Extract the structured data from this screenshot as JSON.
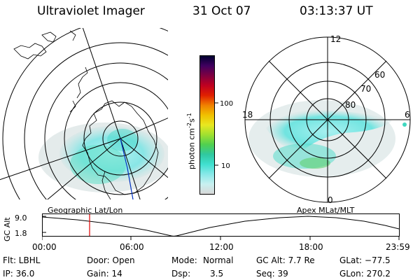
{
  "header": {
    "instrument": "Ultraviolet Imager",
    "date": "31 Oct 07",
    "time": "03:13:37 UT"
  },
  "colorbar": {
    "unit_label": "photon cm",
    "unit_exp1": "-2",
    "unit_s": "s",
    "unit_exp2": "-1",
    "ticks": [
      "100",
      "10"
    ],
    "colors": [
      "#d8d8d8",
      "#c8f0f0",
      "#88e8e8",
      "#40e0d0",
      "#30c8a0",
      "#50d050",
      "#a0e030",
      "#e8e820",
      "#f0c000",
      "#f08000",
      "#e02000",
      "#c00020",
      "#800040",
      "#400060",
      "#000030"
    ]
  },
  "polar": {
    "mlt_labels": {
      "top": "12",
      "left": "18",
      "right": "6",
      "bottom": "0"
    },
    "lat_labels": [
      "60",
      "70",
      "80"
    ]
  },
  "timeline": {
    "y_axis_title": "GC Alt",
    "y_max": "9.0",
    "y_min": "1.8",
    "left_caption": "Geographic Lat/Lon",
    "right_caption": "Apex MLat/MLT",
    "x_ticks": [
      "00:00",
      "06:00",
      "12:00",
      "18:00",
      "23:59"
    ]
  },
  "info": {
    "flt": "Flt: LBHL",
    "ip": "IP: 36.0",
    "door": "Door: Open",
    "gain": "Gain: 14",
    "mode_label": "Mode:",
    "mode_value": "Normal",
    "dsp_label": "Dsp:",
    "dsp_value": "3.5",
    "gc_alt": "GC Alt: 7.7 Re",
    "seq": "Seq: 39",
    "glat": "GLat: −77.5",
    "glon": "GLon: 270.2"
  }
}
